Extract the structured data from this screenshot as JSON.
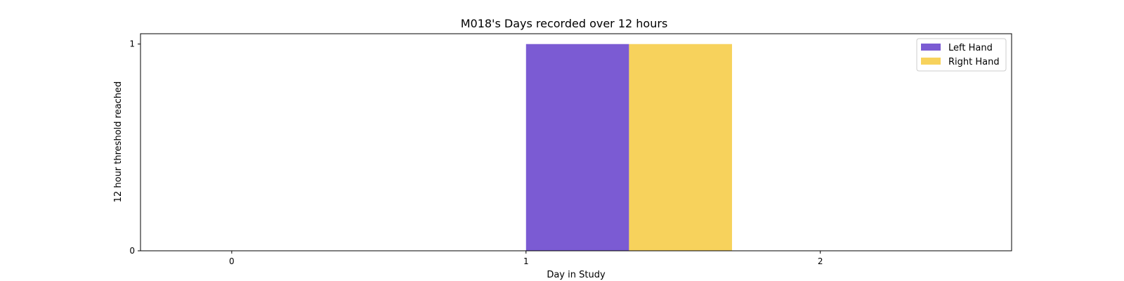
{
  "chart_data": {
    "type": "bar",
    "title": "M018's Days recorded over 12 hours",
    "xlabel": "Day in Study",
    "ylabel": "12 hour threshold reached",
    "x_ticks": [
      "0",
      "1",
      "2"
    ],
    "y_ticks": [
      "0",
      "1"
    ],
    "xlim": [
      -0.31,
      2.65
    ],
    "ylim": [
      0,
      1.05
    ],
    "categories": [
      1
    ],
    "series": [
      {
        "name": "Left Hand",
        "values": [
          1
        ],
        "color": "#7b5bd3"
      },
      {
        "name": "Right Hand",
        "values": [
          1
        ],
        "color": "#f7d25c"
      }
    ],
    "legend": "top-right",
    "grid": false
  }
}
